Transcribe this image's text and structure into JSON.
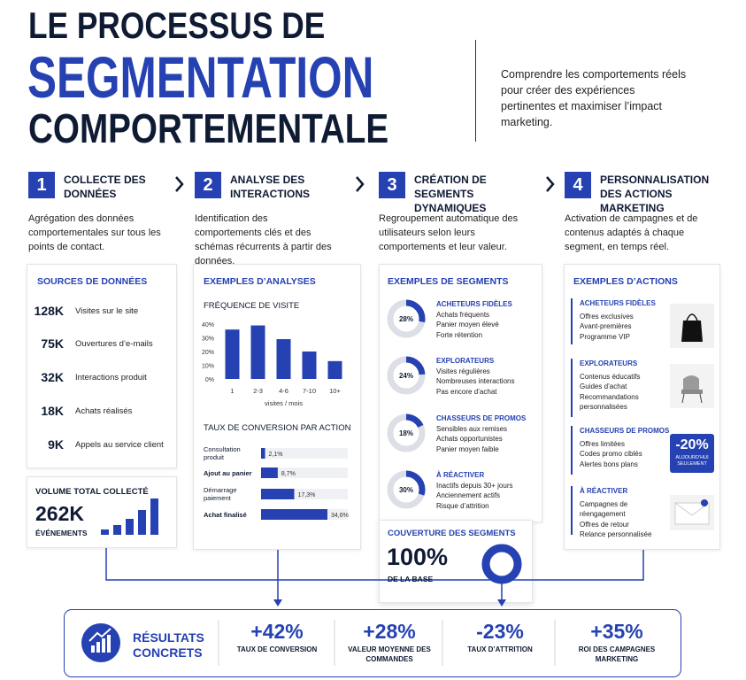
{
  "header": {
    "title": [
      "LE PROCESSUS DE",
      "SEGMENTATION",
      "COMPORTEMENTALE"
    ],
    "tagline": "Comprendre les comportements réels pour créer des expériences pertinentes et maximiser l’impact marketing."
  },
  "steps": [
    {
      "number": "1",
      "title": "COLLECTE DES DONNÉES",
      "text": "Agrégation des données comportementales sur tous les points de contact."
    },
    {
      "number": "2",
      "title": "ANALYSE DES INTERACTIONS",
      "text": "Identification des comportements clés et des schémas récurrents à partir des données."
    },
    {
      "number": "3",
      "title": "CRÉATION DE SEGMENTS DYNAMIQUES",
      "text": "Regroupement automatique des utilisateurs selon leurs comportements et leur valeur."
    },
    {
      "number": "4",
      "title": "PERSONNALISATION DES ACTIONS MARKETING",
      "text": "Activation de campagnes et de contenus adaptés à chaque segment, en temps réel."
    }
  ],
  "sources": {
    "title": "SOURCES DE DONNÉES",
    "items": [
      {
        "value": "128K",
        "label": "Visites sur le site"
      },
      {
        "value": "75K",
        "label": "Ouvertures d’e-mails"
      },
      {
        "value": "32K",
        "label": "Interactions produit"
      },
      {
        "value": "18K",
        "label": "Achats réalisés"
      },
      {
        "value": "9K",
        "label": "Appels au service client"
      }
    ]
  },
  "volume": {
    "title": "VOLUME TOTAL COLLECTÉ",
    "value": "262K",
    "unit": "ÉVÉNEMENTS"
  },
  "analyses": {
    "title": "EXEMPLES D’ANALYSES"
  },
  "chart_data": [
    {
      "type": "bar",
      "title": "FRÉQUENCE DE VISITE",
      "categories": [
        "1",
        "2-3",
        "4-6",
        "7-10",
        "10+"
      ],
      "values": [
        36,
        39,
        29,
        20,
        13
      ],
      "ylim": [
        0,
        40
      ],
      "yticks": [
        {
          "value": 0,
          "label": "0%"
        },
        {
          "value": 10,
          "label": "10%"
        },
        {
          "value": 20,
          "label": "20%"
        },
        {
          "value": 30,
          "label": "30%"
        },
        {
          "value": 40,
          "label": "40%"
        }
      ],
      "x_label": "visites / mois",
      "color": "#2541b2",
      "grid": false
    },
    {
      "type": "hbar",
      "title": "TAUX DE CONVERSION PAR ACTION",
      "categories": [
        "Consultation produit",
        "Ajout au panier",
        "Démarrage paiement",
        "Achat finalisé"
      ],
      "values": [
        2.1,
        8.7,
        17.3,
        34.6
      ],
      "value_labels": [
        "2,1%",
        "8,7%",
        "17,3%",
        "34,6%"
      ],
      "color": "#2541b2"
    }
  ],
  "segments": {
    "title": "EXEMPLES DE SEGMENTS",
    "values": [
      28,
      24,
      18,
      30
    ],
    "value_labels": [
      "28%",
      "24%",
      "18%",
      "30%"
    ],
    "items": [
      {
        "name": "ACHETEURS FIDÈLES",
        "lines": [
          "Achats fréquents",
          "Panier moyen élevé",
          "Forte rétention"
        ]
      },
      {
        "name": "EXPLORATEURS",
        "lines": [
          "Visites régulières",
          "Nombreuses interactions",
          "Pas encore d’achat"
        ]
      },
      {
        "name": "CHASSEURS DE PROMOS",
        "lines": [
          "Sensibles aux remises",
          "Achats opportunistes",
          "Panier moyen faible"
        ]
      },
      {
        "name": "À RÉACTIVER",
        "lines": [
          "Inactifs depuis 30+ jours",
          "Anciennement actifs",
          "Risque d’attrition"
        ]
      }
    ]
  },
  "coverage": {
    "title": "COUVERTURE DES SEGMENTS",
    "value": 100,
    "value_label": "100%",
    "caption": "DE LA BASE"
  },
  "actions": {
    "title": "EXEMPLES D’ACTIONS",
    "items": [
      {
        "name": "ACHETEURS FIDÈLES",
        "lines": [
          "Offres exclusives",
          "Avant-premières",
          "Programme VIP"
        ]
      },
      {
        "name": "EXPLORATEURS",
        "lines": [
          "Contenus éducatifs",
          "Guides d’achat",
          "Recommandations personnalisées"
        ]
      },
      {
        "name": "CHASSEURS DE PROMOS",
        "lines": [
          "Offres limitées",
          "Codes promo ciblés",
          "Alertes bons plans"
        ]
      },
      {
        "name": "À RÉACTIVER",
        "lines": [
          "Campagnes de réengagement",
          "Offres de retour",
          "Relance personnalisée"
        ]
      }
    ],
    "badge": {
      "value": "-20%",
      "text": "AUJOURD’HUI SEULEMENT"
    }
  },
  "results": {
    "title": "RÉSULTATS CONCRETS",
    "items": [
      {
        "value": "+42%",
        "label": "TAUX DE CONVERSION"
      },
      {
        "value": "+28%",
        "label": "VALEUR MOYENNE DES COMMANDES"
      },
      {
        "value": "-23%",
        "label": "TAUX D’ATTRITION"
      },
      {
        "value": "+35%",
        "label": "ROI DES CAMPAGNES MARKETING"
      }
    ]
  }
}
